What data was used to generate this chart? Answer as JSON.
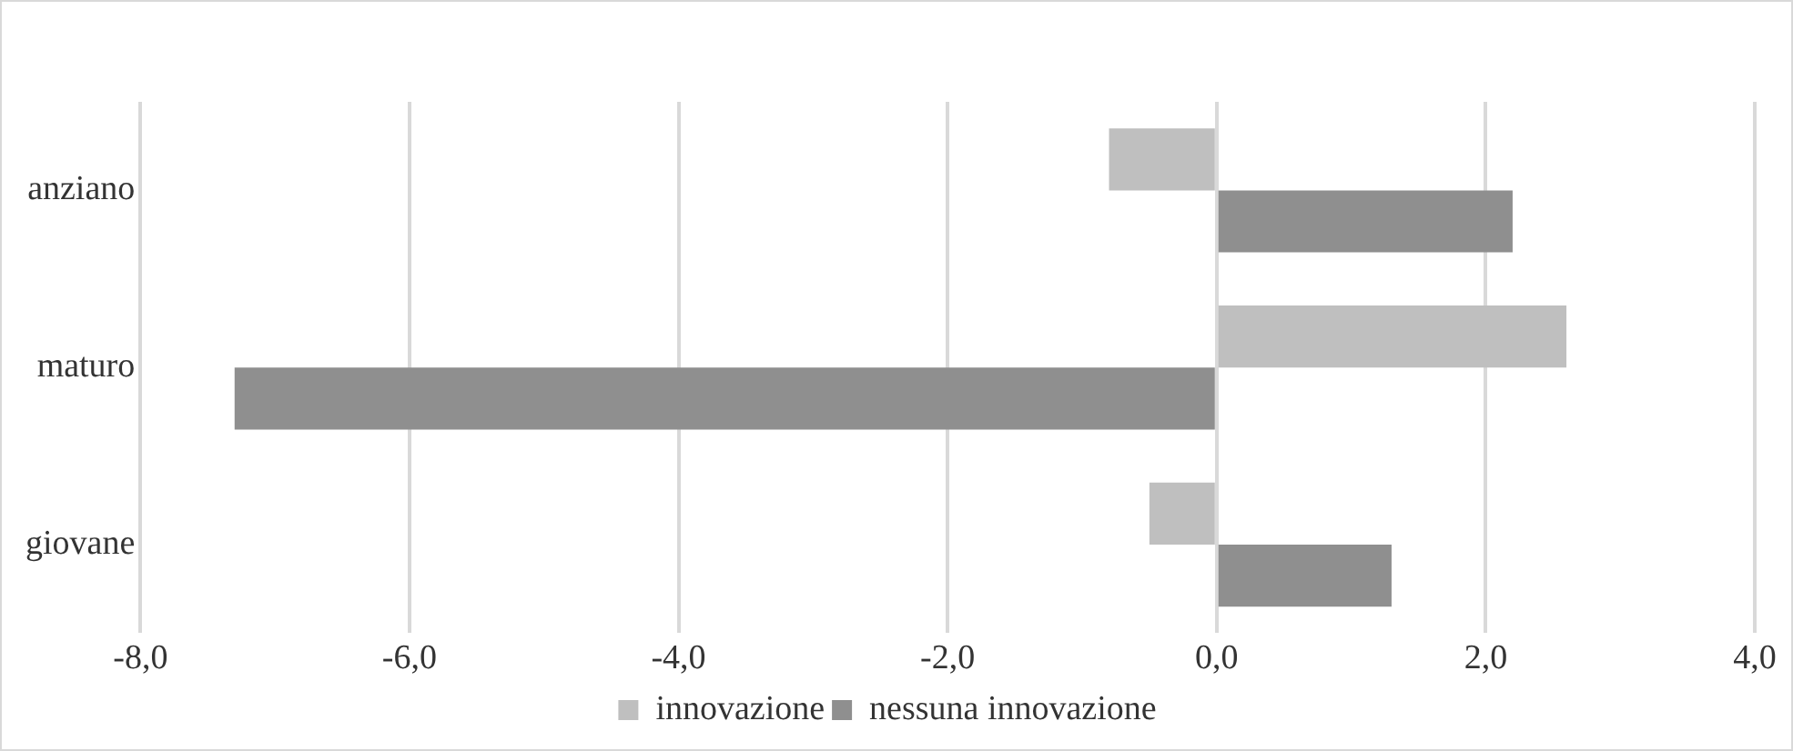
{
  "chart_data": {
    "type": "bar",
    "orientation": "horizontal",
    "categories": [
      "anziano",
      "maturo",
      "giovane"
    ],
    "series": [
      {
        "name": "innovazione",
        "color": "#bfbfbf",
        "values": [
          -0.8,
          2.6,
          -0.5
        ]
      },
      {
        "name": "nessuna innovazione",
        "color": "#8f8f8f",
        "values": [
          2.2,
          -7.3,
          1.3
        ]
      }
    ],
    "xlim": [
      -8,
      4
    ],
    "xticks": [
      {
        "value": -8,
        "label": "-8,0"
      },
      {
        "value": -6,
        "label": "-6,0"
      },
      {
        "value": -4,
        "label": "-4,0"
      },
      {
        "value": -2,
        "label": "-2,0"
      },
      {
        "value": 0,
        "label": "0,0"
      },
      {
        "value": 2,
        "label": "2,0"
      },
      {
        "value": 4,
        "label": "4,0"
      }
    ],
    "grid": "x",
    "legend": "bottom"
  }
}
